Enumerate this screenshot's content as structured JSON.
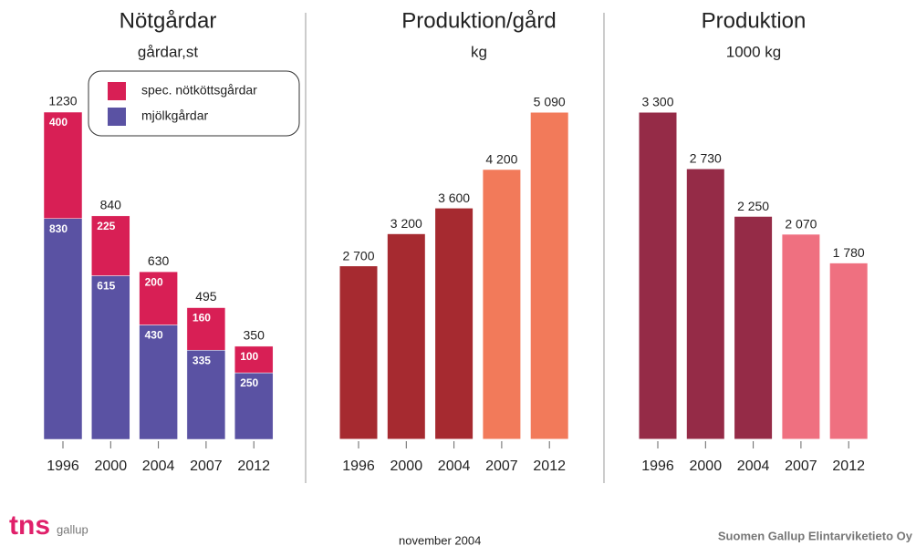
{
  "chart_data": [
    {
      "type": "stacked_bar",
      "title": "Nötgårdar",
      "subtitle": "gårdar,st",
      "categories": [
        "1996",
        "2000",
        "2004",
        "2007",
        "2012"
      ],
      "series": [
        {
          "name": "mjölkgårdar",
          "color": "#5a52a3",
          "values": [
            830,
            615,
            430,
            335,
            250
          ]
        },
        {
          "name": "spec. nötköttsgårdar",
          "color": "#d81f55",
          "values": [
            400,
            225,
            200,
            160,
            100
          ]
        }
      ],
      "totals": [
        1230,
        840,
        630,
        495,
        350
      ]
    },
    {
      "type": "bar",
      "title": "Produktion/gård",
      "subtitle": "kg",
      "categories": [
        "1996",
        "2000",
        "2004",
        "2007",
        "2012"
      ],
      "values": [
        2700,
        3200,
        3600,
        4200,
        5090
      ],
      "value_labels": [
        "2 700",
        "3 200",
        "3 600",
        "4 200",
        "5 090"
      ],
      "colors": [
        "#a62a30",
        "#a62a30",
        "#a62a30",
        "#f27a5a",
        "#f27a5a"
      ]
    },
    {
      "type": "bar",
      "title": "Produktion",
      "subtitle": "1000 kg",
      "categories": [
        "1996",
        "2000",
        "2004",
        "2007",
        "2012"
      ],
      "values": [
        3300,
        2730,
        2250,
        2070,
        1780
      ],
      "value_labels": [
        "3 300",
        "2 730",
        "2 250",
        "2 070",
        "1 780"
      ],
      "colors": [
        "#952b47",
        "#952b47",
        "#952b47",
        "#ef7080",
        "#ef7080"
      ]
    }
  ],
  "footer": {
    "logo": "tns",
    "logo_sub": "gallup",
    "date": "november 2004",
    "company": "Suomen Gallup Elintarviketieto Oy"
  }
}
